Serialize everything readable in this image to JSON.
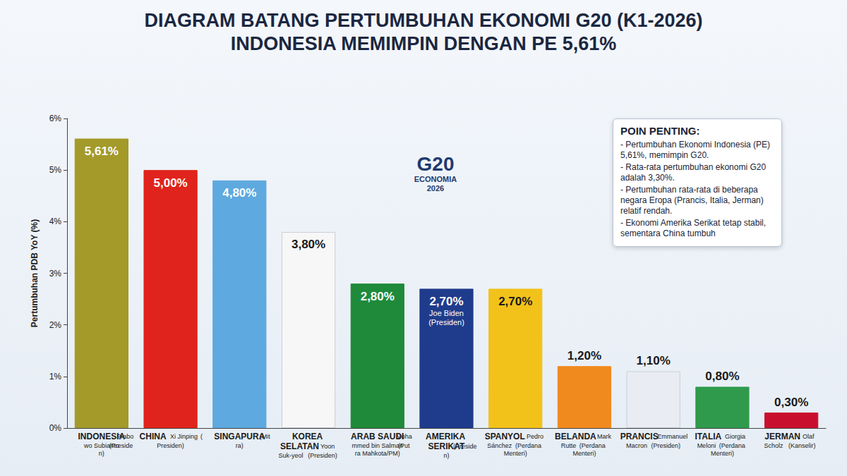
{
  "chart_data": {
    "type": "bar",
    "title": "DIAGRAM BATANG PERTUMBUHAN EKONOMI G20 (K1-2026)",
    "subtitle": "INDONESIA MEMIMPIN DENGAN PE 5,61%",
    "y_label": "Pertumbuhan PDB YoY (%)",
    "categories": [
      "INDONESIA",
      "CHINA",
      "SINGAPURA",
      "KOREA SELATAN",
      "ARAB SAUDI",
      "AMERIKA SERIKAT",
      "SPANYOL",
      "BELANDA",
      "PRANCIS",
      "ITALIA",
      "JERMAN"
    ],
    "leaders": [
      "Prabowo Subianto",
      "Xi Jinping",
      null,
      "Yoon Suk-yeol",
      "Mohammed bin Salman",
      null,
      "Pedro Sánchez",
      "Mark Rutte",
      "Emmanuel Macron",
      "Giorgia Meloni",
      "Olaf Scholz"
    ],
    "roles": [
      "(Presiden)",
      "(Presiden)",
      "(Mitra)",
      "(Presiden)",
      "(Putra Mahkota/PM)",
      "(Presiden)",
      "(Perdana Menteri)",
      "(Perdana Menteri)",
      "(Presiden)",
      "(Perdana Menteri)",
      "(Kanselir)"
    ],
    "values": [
      5.61,
      5.0,
      4.8,
      3.8,
      2.8,
      2.7,
      2.7,
      1.2,
      1.1,
      0.8,
      0.3
    ],
    "value_labels": [
      "5,61%",
      "5,00%",
      "4,80%",
      "3,80%",
      "2,80%",
      "2,70%",
      "2,70%",
      "1,20%",
      "1,10%",
      "0,80%",
      "0,30%"
    ],
    "colors": [
      "#a39a2a",
      "#e0231c",
      "#5ea9df",
      "#f7f7f7",
      "#1f8a3a",
      "#1f3c8c",
      "#f2c21b",
      "#f08a1f",
      "#e9ecf3",
      "#2f9a4c",
      "#c8102e"
    ],
    "bar_annotations": [
      {
        "category": "AMERIKA SERIKAT",
        "lines": [
          "Joe Biden",
          "(Presiden)"
        ]
      }
    ],
    "key_points": {
      "title": "POIN PENTING:",
      "items": [
        "- Pertumbuhan Ekonomi Indonesia (PE) 5,61%, memimpin G20.",
        "- Rata-rata pertumbuhan ekonomi G20 adalah 3,30%.",
        "- Pertumbuhan rata-rata di beberapa negara Eropa (Prancis, Italia, Jerman) relatif rendah.",
        "- Ekonomi Amerika Serikat tetap stabil, sementara China tumbuh"
      ]
    },
    "logo": [
      "G20",
      "ECONOMIA",
      "2026"
    ],
    "ylim": [
      0,
      6
    ],
    "yticks": [
      {
        "value": 0,
        "label": "0%"
      },
      {
        "value": 1,
        "label": "1%"
      },
      {
        "value": 2,
        "label": "2%"
      },
      {
        "value": 3,
        "label": "3%"
      },
      {
        "value": 4,
        "label": "4%"
      },
      {
        "value": 5,
        "label": "5%"
      },
      {
        "value": 6,
        "label": "6%"
      }
    ],
    "grid": false,
    "data_labels": true
  }
}
